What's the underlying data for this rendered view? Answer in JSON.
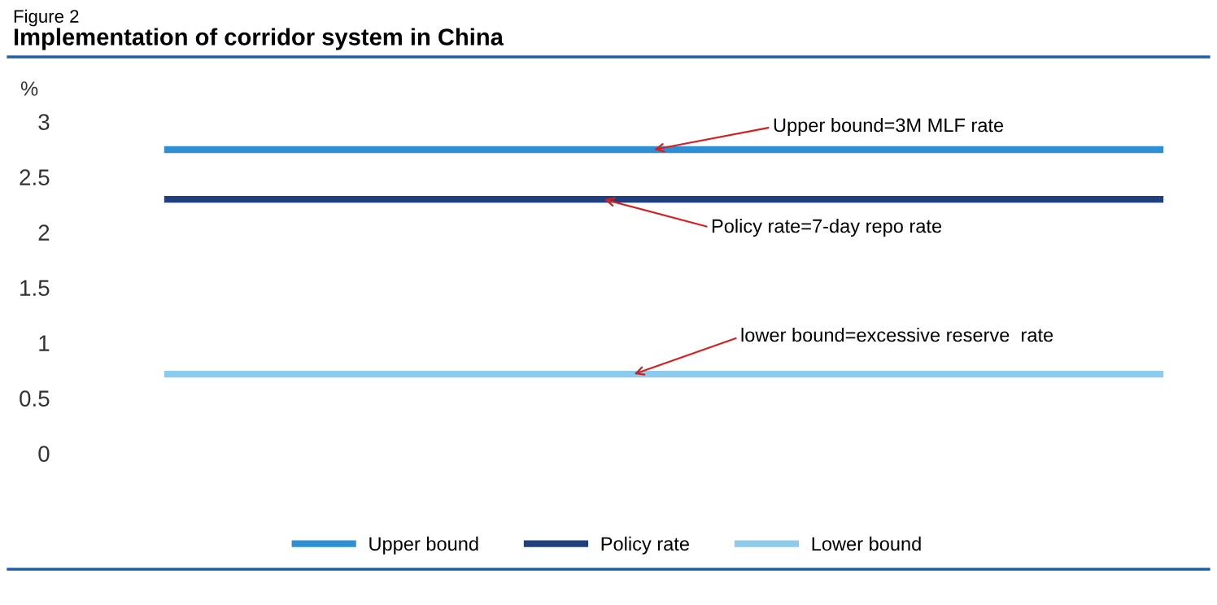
{
  "chart_data": {
    "type": "line",
    "subtitle": "Figure 2",
    "title": "Implementation of corridor system in China",
    "ylabel": "%",
    "categories": [
      null,
      null,
      null,
      null,
      null,
      null,
      null,
      null,
      null,
      null,
      null
    ],
    "series": [
      {
        "name": "Upper bound",
        "color": "#2e8fd4",
        "values": [
          2.75,
          2.75,
          2.75,
          2.75,
          2.75,
          2.75,
          2.75,
          2.75,
          2.75,
          2.75,
          2.75
        ]
      },
      {
        "name": "Policy rate",
        "color": "#1f3f7f",
        "values": [
          2.3,
          2.3,
          2.3,
          2.3,
          2.3,
          2.3,
          2.3,
          2.3,
          2.3,
          2.3,
          2.3
        ]
      },
      {
        "name": "Lower bound",
        "color": "#8ccbeb",
        "values": [
          0.72,
          0.72,
          0.72,
          0.72,
          0.72,
          0.72,
          0.72,
          0.72,
          0.72,
          0.72,
          0.72
        ]
      }
    ],
    "ylim": [
      0,
      3
    ],
    "yticks": [
      0,
      0.5,
      1,
      1.5,
      2,
      2.5,
      3
    ],
    "grid": false,
    "legend": "bottom",
    "marker": "none",
    "line_style": "solid",
    "annotations": [
      {
        "text": "Upper bound=3M MLF rate",
        "y": 2.75
      },
      {
        "text": "Policy rate=7-day repo rate",
        "y": 2.3
      },
      {
        "text": "lower bound=excessive reserve  rate",
        "y": 0.72
      }
    ]
  }
}
